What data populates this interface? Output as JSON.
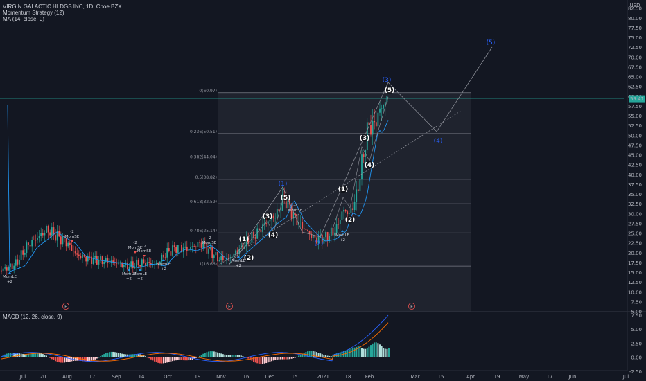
{
  "header": {
    "symbol": "VIRGIN GALACTIC HLDGS INC, 1D, Cboe BZX",
    "strategy": "Momentum Strategy (12)",
    "ma": "MA (14, close, 0)",
    "macd": "MACD (12, 26, close, 9)"
  },
  "colors": {
    "background": "#131722",
    "up": "#26a69a",
    "down": "#ef5350",
    "ma_line": "#2196f3",
    "macd_line": "#2962ff",
    "signal_line": "#ff6d00",
    "wave_blue": "#2962ff",
    "price_tag": "#26a69a"
  },
  "price_axis": {
    "currency": "USD",
    "ticks": [
      "82.50",
      "80.00",
      "77.50",
      "75.00",
      "72.50",
      "70.00",
      "67.50",
      "65.00",
      "62.50",
      "60.00",
      "57.50",
      "55.00",
      "52.50",
      "50.00",
      "47.50",
      "45.00",
      "42.50",
      "40.00",
      "37.50",
      "35.00",
      "32.50",
      "30.00",
      "27.50",
      "25.00",
      "22.50",
      "20.00",
      "17.50",
      "15.00",
      "12.50",
      "10.00",
      "7.50",
      "5.00"
    ],
    "last_price": "59.41"
  },
  "macd_axis": {
    "ticks": [
      "7.50",
      "5.00",
      "2.50",
      "0.00",
      "-2.50"
    ]
  },
  "time_axis": {
    "labels": [
      "Jul",
      "20",
      "Aug",
      "17",
      "Sep",
      "14",
      "Oct",
      "19",
      "Nov",
      "16",
      "Dec",
      "15",
      "2021",
      "18",
      "Feb",
      "Mar",
      "15",
      "Apr",
      "19",
      "May",
      "17",
      "Jun",
      "Jul"
    ]
  },
  "fib_levels": [
    "0(60.97)",
    "0.236(50.51)",
    "0.382(44.04)",
    "0.5(38.82)",
    "0.618(32.59)",
    "0.786(25.14)",
    "1(16.66)"
  ],
  "elliott_white": [
    {
      "label": "(1)"
    },
    {
      "label": "(2)"
    },
    {
      "label": "(3)"
    },
    {
      "label": "(4)"
    },
    {
      "label": "(5)"
    },
    {
      "label": "(1)"
    },
    {
      "label": "(2)"
    },
    {
      "label": "(3)"
    },
    {
      "label": "(4)"
    },
    {
      "label": "(5)"
    }
  ],
  "elliott_blue": [
    {
      "label": "(1)"
    },
    {
      "label": "(2)"
    },
    {
      "label": "(3)"
    },
    {
      "label": "(4)"
    },
    {
      "label": "(5)"
    }
  ],
  "signals": [
    {
      "text": "MomLE",
      "sub": "+2"
    },
    {
      "text": "-2",
      "sub": "MomSE"
    },
    {
      "text": "-2",
      "sub": "MomSE"
    },
    {
      "text": "-2",
      "sub": "MomSE"
    },
    {
      "text": "MomLE",
      "sub": "+2"
    },
    {
      "text": "MomLE",
      "sub": "+2"
    },
    {
      "text": "MomLE",
      "sub": "+2"
    },
    {
      "text": "-2",
      "sub": "MomSE"
    },
    {
      "text": "MomLE",
      "sub": "+2"
    },
    {
      "text": "-2",
      "sub": "MomSE"
    },
    {
      "text": "MomLE",
      "sub": "+2"
    }
  ],
  "earnings_marker": "E"
}
